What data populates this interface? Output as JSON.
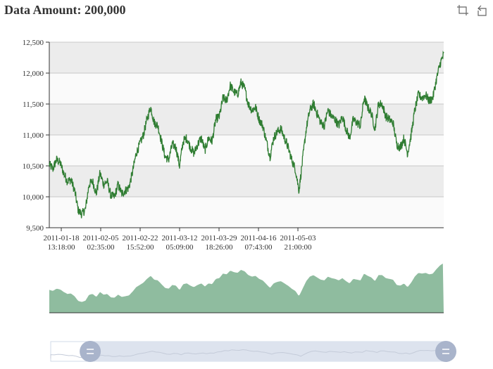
{
  "title": "Data Amount: 200,000",
  "toolbox": {
    "zoom_icon": "crop-zoom-icon",
    "restore_icon": "restore-icon"
  },
  "colors": {
    "line": "#2f7d32",
    "band": "#ececec",
    "band_alt": "#fafafa",
    "grid": "#c8c8c8",
    "area": "#8fbc9f",
    "slider_bg": "#dde3ee",
    "slider_handle": "#a9b4cb"
  },
  "chart_data": {
    "type": "line",
    "title": "Data Amount: 200,000",
    "series": [
      {
        "values": [
          10520,
          10450,
          10600,
          10550,
          10380,
          10250,
          10280,
          10100,
          9780,
          9720,
          9800,
          10200,
          10250,
          10050,
          10380,
          10200,
          10250,
          10020,
          10000,
          10200,
          10050,
          10100,
          10150,
          10400,
          10700,
          10850,
          11000,
          11250,
          11450,
          11200,
          11150,
          10900,
          10650,
          10600,
          10850,
          10800,
          10500,
          10900,
          10950,
          10800,
          10700,
          10850,
          10950,
          10750,
          10950,
          10900,
          11250,
          11300,
          11600,
          11550,
          11800,
          11700,
          11650,
          11850,
          11750,
          11500,
          11400,
          11450,
          11250,
          11150,
          10900,
          10650,
          10950,
          11050,
          11100,
          10950,
          10800,
          10600,
          10450,
          10100,
          10600,
          11100,
          11400,
          11500,
          11350,
          11200,
          11150,
          11400,
          11300,
          11250,
          11150,
          11300,
          11100,
          10950,
          11250,
          11200,
          11150,
          11600,
          11450,
          11350,
          11100,
          11500,
          11500,
          11300,
          11250,
          11200,
          10850,
          10800,
          10950,
          10700,
          11000,
          11400,
          11650,
          11600,
          11650,
          11550,
          11600,
          11900,
          12150,
          12300
        ]
      }
    ],
    "x_ticks": [
      [
        "2011-01-18",
        "13:18:00"
      ],
      [
        "2011-02-05",
        "02:35:00"
      ],
      [
        "2011-02-22",
        "15:52:00"
      ],
      [
        "2011-03-12",
        "05:09:00"
      ],
      [
        "2011-03-29",
        "18:26:00"
      ],
      [
        "2011-04-16",
        "07:43:00"
      ],
      [
        "2011-05-03",
        "21:00:00"
      ]
    ],
    "y_ticks": [
      "9,500",
      "10,000",
      "10,500",
      "11,000",
      "11,500",
      "12,000",
      "12,500"
    ],
    "ylim": [
      9500,
      12500
    ],
    "grid": true,
    "data_zoom": {
      "start": 0.1,
      "end": 1.0
    }
  }
}
